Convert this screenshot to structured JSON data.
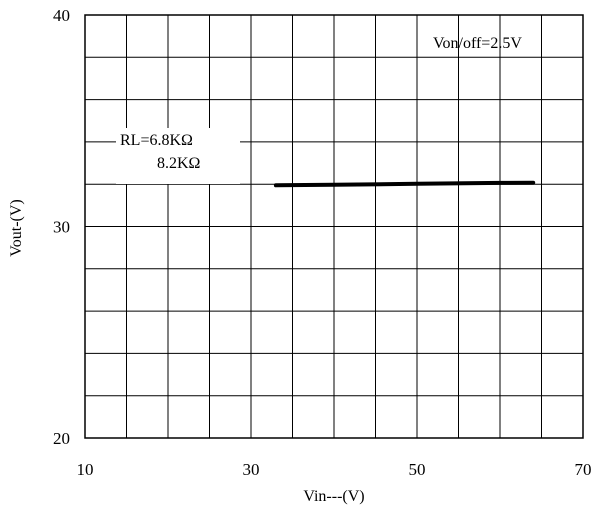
{
  "chart_data": {
    "type": "line",
    "title": "",
    "xlabel": "Vin---(V)",
    "ylabel": "Vout-(V)",
    "xlim": [
      10,
      70
    ],
    "ylim": [
      20,
      40
    ],
    "x_tick_labels": [
      "10",
      "30",
      "50",
      "70"
    ],
    "y_tick_labels": [
      "20",
      "30",
      "40"
    ],
    "grid": true,
    "x_grid_step": 5,
    "y_grid_step": 2,
    "annotations": {
      "condition": "Von/off=2.5V",
      "legend_line1": "RL=6.8KΩ",
      "legend_line2": "8.2KΩ"
    },
    "series": [
      {
        "name": "",
        "color": "#000000",
        "x": [
          33,
          40,
          50,
          60,
          64
        ],
        "y": [
          31.95,
          31.97,
          32.02,
          32.06,
          32.07
        ]
      }
    ]
  }
}
